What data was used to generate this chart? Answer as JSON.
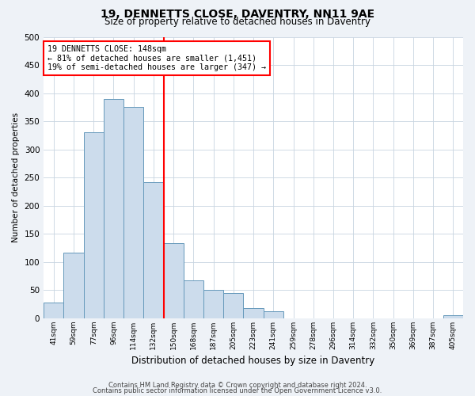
{
  "title": "19, DENNETTS CLOSE, DAVENTRY, NN11 9AE",
  "subtitle": "Size of property relative to detached houses in Daventry",
  "xlabel": "Distribution of detached houses by size in Daventry",
  "ylabel": "Number of detached properties",
  "categories": [
    "41sqm",
    "59sqm",
    "77sqm",
    "96sqm",
    "114sqm",
    "132sqm",
    "150sqm",
    "168sqm",
    "187sqm",
    "205sqm",
    "223sqm",
    "241sqm",
    "259sqm",
    "278sqm",
    "296sqm",
    "314sqm",
    "332sqm",
    "350sqm",
    "369sqm",
    "387sqm",
    "405sqm"
  ],
  "values": [
    28,
    117,
    330,
    390,
    375,
    242,
    133,
    68,
    50,
    45,
    18,
    13,
    0,
    0,
    0,
    0,
    0,
    0,
    0,
    0,
    5
  ],
  "bar_color": "#ccdcec",
  "bar_edge_color": "#6699bb",
  "vline_color": "red",
  "annotation_title": "19 DENNETTS CLOSE: 148sqm",
  "annotation_line1": "← 81% of detached houses are smaller (1,451)",
  "annotation_line2": "19% of semi-detached houses are larger (347) →",
  "ylim": [
    0,
    500
  ],
  "yticks": [
    0,
    50,
    100,
    150,
    200,
    250,
    300,
    350,
    400,
    450,
    500
  ],
  "footer_line1": "Contains HM Land Registry data © Crown copyright and database right 2024.",
  "footer_line2": "Contains public sector information licensed under the Open Government Licence v3.0.",
  "bg_color": "#eef2f7",
  "plot_bg_color": "#ffffff",
  "grid_color": "#c8d4e0"
}
